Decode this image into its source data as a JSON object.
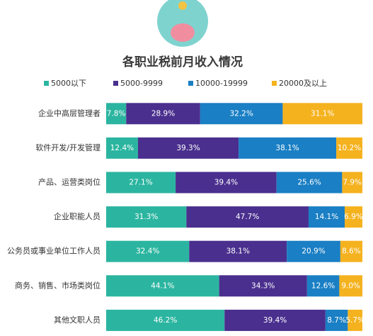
{
  "chart_data": {
    "type": "stacked-bar-horizontal",
    "title": "各职业税前月收入情况",
    "categories": [
      "企业中高层管理者",
      "软件开发/开发管理",
      "产品、运营类岗位",
      "企业职能人员",
      "公务员或事业单位工作人员",
      "商务、销售、市场类岗位",
      "其他文职人员"
    ],
    "xlim": [
      0,
      100
    ],
    "series": [
      {
        "name": "5000以下",
        "color": "#2bb5a0",
        "values": [
          7.8,
          12.4,
          27.1,
          31.3,
          32.4,
          44.1,
          46.2
        ],
        "value_labels": [
          "7.8%",
          "12.4%",
          "27.1%",
          "31.3%",
          "32.4%",
          "44.1%",
          "46.2%"
        ]
      },
      {
        "name": "5000-9999",
        "color": "#4a2f8e",
        "values": [
          28.9,
          39.3,
          39.4,
          47.7,
          38.1,
          34.3,
          39.4
        ],
        "value_labels": [
          "28.9%",
          "39.3%",
          "39.4%",
          "47.7%",
          "38.1%",
          "34.3%",
          "39.4%"
        ]
      },
      {
        "name": "10000-19999",
        "color": "#1a7fc4",
        "values": [
          32.2,
          38.1,
          25.6,
          14.1,
          20.9,
          12.6,
          8.7
        ],
        "value_labels": [
          "32.2%",
          "38.1%",
          "25.6%",
          "14.1%",
          "20.9%",
          "12.6%",
          "8.7%"
        ]
      },
      {
        "name": "20000及以上",
        "color": "#f5b21f",
        "values": [
          31.1,
          10.2,
          7.9,
          6.9,
          8.6,
          9.0,
          5.7
        ],
        "value_labels": [
          "31.1%",
          "10.2%",
          "7.9%",
          "6.9%",
          "8.6%",
          "9.0%",
          "5.7%"
        ]
      }
    ]
  }
}
